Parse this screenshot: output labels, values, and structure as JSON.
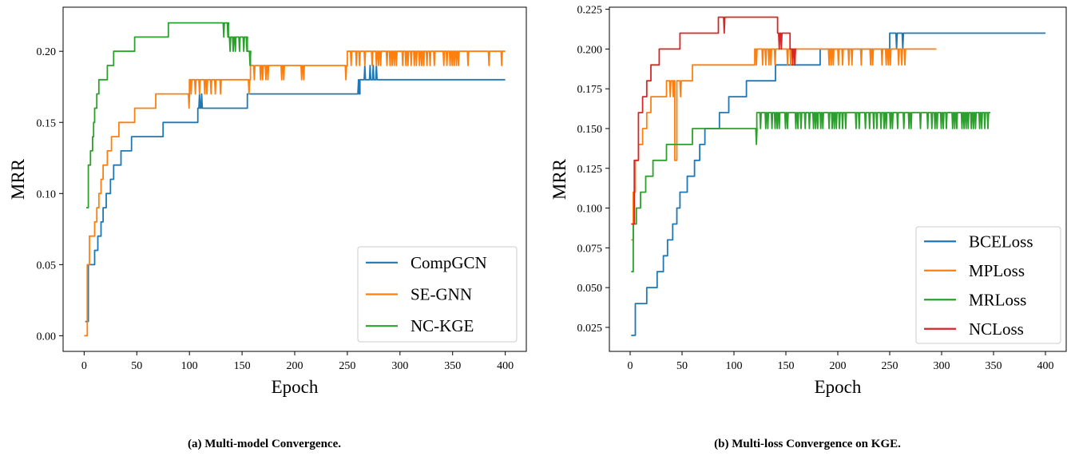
{
  "chart_data": [
    {
      "type": "line",
      "caption": "(a) Multi-model Convergence.",
      "xlabel": "Epoch",
      "ylabel": "MRR",
      "xlim": [
        -20,
        420
      ],
      "ylim": [
        -0.011,
        0.231
      ],
      "xticks": [
        0,
        50,
        100,
        150,
        200,
        250,
        300,
        350,
        400
      ],
      "yticks": [
        0.0,
        0.05,
        0.1,
        0.15,
        0.2
      ],
      "ytick_labels": [
        "0.00",
        "0.05",
        "0.10",
        "0.15",
        "0.20"
      ],
      "legend_loc": "lower right",
      "series": [
        {
          "name": "CompGCN",
          "color": "#1f77b4",
          "points": [
            [
              1,
              0.01
            ],
            [
              4,
              0.05
            ],
            [
              8,
              0.05
            ],
            [
              10,
              0.06
            ],
            [
              13,
              0.07
            ],
            [
              16,
              0.08
            ],
            [
              18,
              0.09
            ],
            [
              21,
              0.1
            ],
            [
              25,
              0.11
            ],
            [
              28,
              0.12
            ],
            [
              33,
              0.12
            ],
            [
              35,
              0.13
            ],
            [
              40,
              0.13
            ],
            [
              43,
              0.13
            ],
            [
              45,
              0.14
            ],
            [
              55,
              0.14
            ],
            [
              60,
              0.14
            ],
            [
              67,
              0.14
            ],
            [
              75,
              0.15
            ],
            [
              80,
              0.15
            ],
            [
              100,
              0.15
            ],
            [
              108,
              0.16
            ],
            [
              113,
              0.16
            ],
            [
              140,
              0.16
            ],
            [
              155,
              0.17
            ],
            [
              160,
              0.17
            ],
            [
              240,
              0.17
            ],
            [
              262,
              0.18
            ],
            [
              270,
              0.18
            ],
            [
              400,
              0.18
            ]
          ]
        },
        {
          "name": "SE-GNN",
          "color": "#ff7f0e",
          "points": [
            [
              0,
              0.0
            ],
            [
              3,
              0.05
            ],
            [
              5,
              0.07
            ],
            [
              10,
              0.08
            ],
            [
              12,
              0.09
            ],
            [
              14,
              0.1
            ],
            [
              16,
              0.11
            ],
            [
              18,
              0.12
            ],
            [
              22,
              0.13
            ],
            [
              26,
              0.14
            ],
            [
              33,
              0.15
            ],
            [
              40,
              0.15
            ],
            [
              48,
              0.16
            ],
            [
              58,
              0.16
            ],
            [
              68,
              0.17
            ],
            [
              80,
              0.17
            ],
            [
              97,
              0.17
            ],
            [
              100,
              0.18
            ],
            [
              140,
              0.18
            ],
            [
              150,
              0.18
            ],
            [
              158,
              0.19
            ],
            [
              200,
              0.19
            ],
            [
              245,
              0.19
            ],
            [
              250,
              0.2
            ],
            [
              300,
              0.2
            ],
            [
              400,
              0.2
            ]
          ]
        },
        {
          "name": "NC-KGE",
          "color": "#2ca02c",
          "points": [
            [
              2,
              0.09
            ],
            [
              4,
              0.12
            ],
            [
              6,
              0.13
            ],
            [
              8,
              0.14
            ],
            [
              9,
              0.15
            ],
            [
              10,
              0.16
            ],
            [
              12,
              0.17
            ],
            [
              14,
              0.18
            ],
            [
              22,
              0.19
            ],
            [
              28,
              0.2
            ],
            [
              35,
              0.2
            ],
            [
              48,
              0.21
            ],
            [
              60,
              0.21
            ],
            [
              80,
              0.22
            ],
            [
              100,
              0.22
            ],
            [
              135,
              0.22
            ],
            [
              137,
              0.21
            ],
            [
              150,
              0.21
            ],
            [
              155,
              0.2
            ],
            [
              158,
              0.19
            ]
          ]
        }
      ]
    },
    {
      "type": "line",
      "caption": "(b) Multi-loss Convergence on KGE.",
      "xlabel": "Epoch",
      "ylabel": "MRR",
      "xlim": [
        -20,
        420
      ],
      "ylim": [
        0.0099,
        0.2263
      ],
      "xticks": [
        0,
        50,
        100,
        150,
        200,
        250,
        300,
        350,
        400
      ],
      "yticks": [
        0.025,
        0.05,
        0.075,
        0.1,
        0.125,
        0.15,
        0.175,
        0.2,
        0.225
      ],
      "ytick_labels": [
        "0.025",
        "0.050",
        "0.075",
        "0.100",
        "0.125",
        "0.150",
        "0.175",
        "0.200",
        "0.225"
      ],
      "legend_loc": "lower right",
      "series": [
        {
          "name": "BCELoss",
          "color": "#1f77b4",
          "points": [
            [
              1,
              0.02
            ],
            [
              5,
              0.04
            ],
            [
              14,
              0.04
            ],
            [
              16,
              0.05
            ],
            [
              20,
              0.05
            ],
            [
              26,
              0.06
            ],
            [
              32,
              0.07
            ],
            [
              36,
              0.08
            ],
            [
              41,
              0.09
            ],
            [
              45,
              0.1
            ],
            [
              48,
              0.11
            ],
            [
              55,
              0.12
            ],
            [
              62,
              0.13
            ],
            [
              67,
              0.14
            ],
            [
              72,
              0.15
            ],
            [
              80,
              0.15
            ],
            [
              86,
              0.16
            ],
            [
              95,
              0.17
            ],
            [
              112,
              0.18
            ],
            [
              140,
              0.19
            ],
            [
              183,
              0.2
            ],
            [
              250,
              0.21
            ],
            [
              400,
              0.21
            ]
          ]
        },
        {
          "name": "MPLoss",
          "color": "#ff7f0e",
          "points": [
            [
              1,
              0.08
            ],
            [
              3,
              0.11
            ],
            [
              5,
              0.13
            ],
            [
              8,
              0.14
            ],
            [
              12,
              0.15
            ],
            [
              16,
              0.16
            ],
            [
              20,
              0.17
            ],
            [
              28,
              0.17
            ],
            [
              35,
              0.18
            ],
            [
              42,
              0.18
            ],
            [
              43,
              0.13
            ],
            [
              45,
              0.18
            ],
            [
              55,
              0.18
            ],
            [
              60,
              0.19
            ],
            [
              100,
              0.19
            ],
            [
              120,
              0.2
            ],
            [
              295,
              0.2
            ]
          ]
        },
        {
          "name": "MRLoss",
          "color": "#2ca02c",
          "points": [
            [
              1,
              0.06
            ],
            [
              3,
              0.09
            ],
            [
              6,
              0.1
            ],
            [
              10,
              0.11
            ],
            [
              15,
              0.12
            ],
            [
              22,
              0.13
            ],
            [
              35,
              0.14
            ],
            [
              50,
              0.14
            ],
            [
              60,
              0.15
            ],
            [
              120,
              0.15
            ],
            [
              122,
              0.16
            ],
            [
              347,
              0.16
            ]
          ]
        },
        {
          "name": "NCLoss",
          "color": "#d62728",
          "points": [
            [
              1,
              0.09
            ],
            [
              4,
              0.13
            ],
            [
              8,
              0.16
            ],
            [
              12,
              0.17
            ],
            [
              16,
              0.18
            ],
            [
              20,
              0.19
            ],
            [
              28,
              0.2
            ],
            [
              45,
              0.2
            ],
            [
              48,
              0.21
            ],
            [
              80,
              0.21
            ],
            [
              85,
              0.22
            ],
            [
              140,
              0.22
            ],
            [
              142,
              0.21
            ],
            [
              150,
              0.21
            ],
            [
              154,
              0.2
            ],
            [
              160,
              0.2
            ]
          ]
        }
      ]
    }
  ]
}
